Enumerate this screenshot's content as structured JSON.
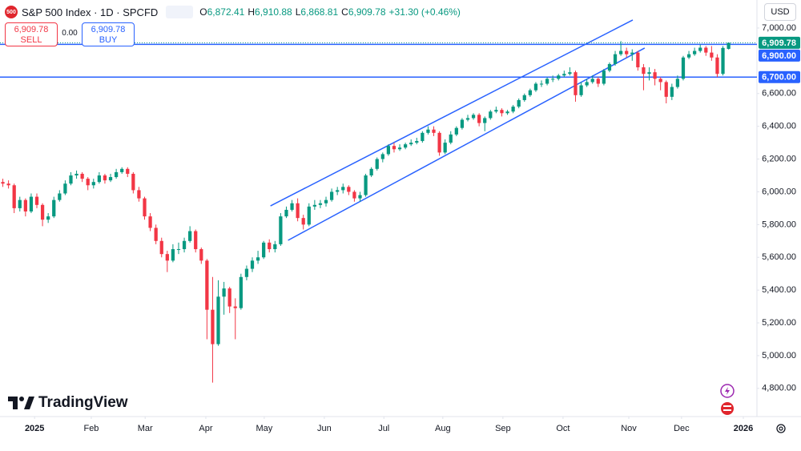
{
  "header": {
    "badge": "500",
    "title": "S&P 500 Index · 1D · SPCFD",
    "ohlc": [
      {
        "key": "O",
        "value": "6,872.41"
      },
      {
        "key": "H",
        "value": "6,910.88"
      },
      {
        "key": "L",
        "value": "6,868.81"
      },
      {
        "key": "C",
        "value": "6,909.78"
      }
    ],
    "change": "+31.30 (+0.46%)",
    "sell_price": "6,909.78",
    "sell_label": "SELL",
    "spread": "0.00",
    "buy_price": "6,909.78",
    "buy_label": "BUY",
    "currency": "USD"
  },
  "footer": {
    "brand": "TradingView"
  },
  "chart_data": {
    "type": "candlestick",
    "up_color": "#089981",
    "down_color": "#f23645",
    "xlim": [
      -0.5,
      133
    ],
    "xticks": [
      {
        "value": 5.6,
        "label": "2025"
      },
      {
        "value": 15.6,
        "label": "Feb"
      },
      {
        "value": 25.1,
        "label": "Mar"
      },
      {
        "value": 35.8,
        "label": "Apr"
      },
      {
        "value": 46.1,
        "label": "May"
      },
      {
        "value": 56.7,
        "label": "Jun"
      },
      {
        "value": 67.2,
        "label": "Jul"
      },
      {
        "value": 77.6,
        "label": "Aug"
      },
      {
        "value": 88.2,
        "label": "Sep"
      },
      {
        "value": 98.8,
        "label": "Oct"
      },
      {
        "value": 110.4,
        "label": "Nov"
      },
      {
        "value": 119.7,
        "label": "Dec"
      },
      {
        "value": 130.6,
        "label": "2026"
      }
    ],
    "ylim": [
      4628,
      7171
    ],
    "yticks": [
      {
        "value": 7000,
        "label": "7,000.00"
      },
      {
        "value": 6600,
        "label": "6,600.00"
      },
      {
        "value": 6400,
        "label": "6,400.00"
      },
      {
        "value": 6200,
        "label": "6,200.00"
      },
      {
        "value": 6000,
        "label": "6,000.00"
      },
      {
        "value": 5800,
        "label": "5,800.00"
      },
      {
        "value": 5600,
        "label": "5,600.00"
      },
      {
        "value": 5400,
        "label": "5,400.00"
      },
      {
        "value": 5200,
        "label": "5,200.00"
      },
      {
        "value": 5000,
        "label": "5,000.00"
      },
      {
        "value": 4800,
        "label": "4,800.00"
      }
    ],
    "last_price": {
      "value": 6909.78,
      "label": "6,909.78",
      "color": "#089981"
    },
    "horizontal_lines": [
      {
        "value": 6900,
        "label": "6,900.00",
        "color": "#2962ff"
      },
      {
        "value": 6700,
        "label": "6,700.00",
        "color": "#2962ff"
      }
    ],
    "trend_lines": [
      {
        "points": [
          [
            47.2,
            5914
          ],
          [
            111.1,
            7049
          ]
        ],
        "color": "#2962ff"
      },
      {
        "points": [
          [
            50.3,
            5704
          ],
          [
            113.2,
            6878
          ]
        ],
        "color": "#2962ff"
      }
    ],
    "candles": [
      [
        6060,
        6080,
        6030,
        6050
      ],
      [
        6050,
        6070,
        6020,
        6040
      ],
      [
        6040,
        6050,
        5870,
        5900
      ],
      [
        5900,
        5970,
        5880,
        5950
      ],
      [
        5950,
        5960,
        5850,
        5880
      ],
      [
        5880,
        5990,
        5870,
        5970
      ],
      [
        5970,
        5990,
        5900,
        5920
      ],
      [
        5920,
        5930,
        5790,
        5830
      ],
      [
        5830,
        5870,
        5810,
        5850
      ],
      [
        5850,
        5970,
        5840,
        5950
      ],
      [
        5950,
        6010,
        5940,
        5990
      ],
      [
        5990,
        6070,
        5980,
        6050
      ],
      [
        6050,
        6120,
        6040,
        6100
      ],
      [
        6100,
        6130,
        6080,
        6110
      ],
      [
        6110,
        6120,
        6060,
        6080
      ],
      [
        6080,
        6090,
        6010,
        6040
      ],
      [
        6040,
        6080,
        6020,
        6060
      ],
      [
        6060,
        6120,
        6050,
        6100
      ],
      [
        6100,
        6110,
        6050,
        6070
      ],
      [
        6070,
        6110,
        6060,
        6090
      ],
      [
        6090,
        6140,
        6080,
        6120
      ],
      [
        6120,
        6150,
        6110,
        6140
      ],
      [
        6140,
        6150,
        6090,
        6110
      ],
      [
        6110,
        6120,
        5990,
        6010
      ],
      [
        6010,
        6030,
        5940,
        5960
      ],
      [
        5960,
        5970,
        5830,
        5850
      ],
      [
        5850,
        5870,
        5760,
        5780
      ],
      [
        5780,
        5800,
        5680,
        5700
      ],
      [
        5700,
        5720,
        5600,
        5620
      ],
      [
        5620,
        5640,
        5510,
        5580
      ],
      [
        5580,
        5680,
        5570,
        5650
      ],
      [
        5650,
        5690,
        5620,
        5650
      ],
      [
        5650,
        5720,
        5630,
        5700
      ],
      [
        5700,
        5790,
        5690,
        5760
      ],
      [
        5760,
        5770,
        5630,
        5650
      ],
      [
        5650,
        5660,
        5560,
        5580
      ],
      [
        5580,
        5590,
        5100,
        5280
      ],
      [
        5280,
        5480,
        4835,
        5070
      ],
      [
        5070,
        5460,
        5060,
        5360
      ],
      [
        5360,
        5450,
        5250,
        5410
      ],
      [
        5410,
        5420,
        5260,
        5300
      ],
      [
        5300,
        5350,
        5100,
        5290
      ],
      [
        5290,
        5500,
        5280,
        5480
      ],
      [
        5480,
        5550,
        5460,
        5530
      ],
      [
        5530,
        5600,
        5510,
        5580
      ],
      [
        5580,
        5640,
        5560,
        5600
      ],
      [
        5600,
        5700,
        5590,
        5690
      ],
      [
        5690,
        5710,
        5630,
        5650
      ],
      [
        5650,
        5700,
        5630,
        5680
      ],
      [
        5680,
        5870,
        5670,
        5850
      ],
      [
        5850,
        5910,
        5840,
        5890
      ],
      [
        5890,
        5950,
        5880,
        5930
      ],
      [
        5930,
        5960,
        5820,
        5840
      ],
      [
        5840,
        5860,
        5770,
        5800
      ],
      [
        5800,
        5930,
        5790,
        5910
      ],
      [
        5910,
        5950,
        5890,
        5920
      ],
      [
        5920,
        5950,
        5900,
        5930
      ],
      [
        5930,
        5970,
        5910,
        5950
      ],
      [
        5950,
        6020,
        5940,
        6000
      ],
      [
        6000,
        6030,
        5980,
        6010
      ],
      [
        6010,
        6050,
        5990,
        6030
      ],
      [
        6030,
        6040,
        5980,
        6000
      ],
      [
        6000,
        6010,
        5940,
        5960
      ],
      [
        5960,
        6000,
        5940,
        5980
      ],
      [
        5980,
        6110,
        5970,
        6100
      ],
      [
        6100,
        6150,
        6090,
        6140
      ],
      [
        6140,
        6210,
        6130,
        6200
      ],
      [
        6200,
        6240,
        6180,
        6230
      ],
      [
        6230,
        6290,
        6220,
        6280
      ],
      [
        6280,
        6300,
        6240,
        6260
      ],
      [
        6260,
        6290,
        6250,
        6270
      ],
      [
        6270,
        6300,
        6260,
        6290
      ],
      [
        6290,
        6320,
        6280,
        6300
      ],
      [
        6300,
        6330,
        6290,
        6310
      ],
      [
        6310,
        6370,
        6300,
        6360
      ],
      [
        6360,
        6400,
        6350,
        6380
      ],
      [
        6380,
        6400,
        6340,
        6360
      ],
      [
        6360,
        6370,
        6220,
        6240
      ],
      [
        6240,
        6320,
        6230,
        6300
      ],
      [
        6300,
        6370,
        6290,
        6350
      ],
      [
        6350,
        6400,
        6340,
        6390
      ],
      [
        6390,
        6450,
        6380,
        6440
      ],
      [
        6440,
        6470,
        6430,
        6450
      ],
      [
        6450,
        6480,
        6440,
        6470
      ],
      [
        6470,
        6480,
        6400,
        6420
      ],
      [
        6420,
        6460,
        6370,
        6450
      ],
      [
        6450,
        6500,
        6440,
        6490
      ],
      [
        6490,
        6520,
        6480,
        6500
      ],
      [
        6500,
        6510,
        6460,
        6480
      ],
      [
        6480,
        6500,
        6470,
        6490
      ],
      [
        6490,
        6530,
        6480,
        6520
      ],
      [
        6520,
        6570,
        6510,
        6560
      ],
      [
        6560,
        6600,
        6550,
        6590
      ],
      [
        6590,
        6630,
        6580,
        6620
      ],
      [
        6620,
        6670,
        6610,
        6660
      ],
      [
        6660,
        6680,
        6640,
        6660
      ],
      [
        6660,
        6700,
        6650,
        6690
      ],
      [
        6690,
        6710,
        6670,
        6690
      ],
      [
        6690,
        6720,
        6680,
        6710
      ],
      [
        6710,
        6740,
        6700,
        6720
      ],
      [
        6720,
        6760,
        6710,
        6730
      ],
      [
        6730,
        6740,
        6550,
        6590
      ],
      [
        6590,
        6670,
        6580,
        6650
      ],
      [
        6650,
        6690,
        6640,
        6670
      ],
      [
        6670,
        6710,
        6660,
        6690
      ],
      [
        6690,
        6700,
        6640,
        6660
      ],
      [
        6660,
        6750,
        6650,
        6740
      ],
      [
        6740,
        6790,
        6730,
        6780
      ],
      [
        6780,
        6860,
        6770,
        6840
      ],
      [
        6840,
        6920,
        6830,
        6860
      ],
      [
        6860,
        6880,
        6820,
        6840
      ],
      [
        6840,
        6870,
        6800,
        6850
      ],
      [
        6850,
        6860,
        6740,
        6760
      ],
      [
        6760,
        6780,
        6620,
        6720
      ],
      [
        6720,
        6760,
        6680,
        6730
      ],
      [
        6730,
        6750,
        6650,
        6690
      ],
      [
        6690,
        6700,
        6620,
        6670
      ],
      [
        6670,
        6680,
        6540,
        6580
      ],
      [
        6580,
        6660,
        6560,
        6640
      ],
      [
        6640,
        6710,
        6630,
        6690
      ],
      [
        6690,
        6830,
        6680,
        6820
      ],
      [
        6820,
        6860,
        6810,
        6840
      ],
      [
        6840,
        6880,
        6830,
        6860
      ],
      [
        6860,
        6900,
        6850,
        6880
      ],
      [
        6880,
        6890,
        6830,
        6850
      ],
      [
        6850,
        6890,
        6800,
        6820
      ],
      [
        6820,
        6840,
        6700,
        6720
      ],
      [
        6720,
        6890,
        6710,
        6878.48
      ],
      [
        6872.41,
        6910.88,
        6868.81,
        6909.78
      ]
    ]
  }
}
